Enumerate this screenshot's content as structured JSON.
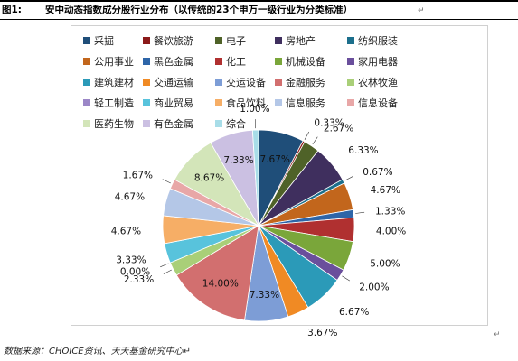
{
  "figure": {
    "label": "图1:",
    "title": "安中动态指数成分股行业分布（以传统的23个申万一级行业为分类标准）",
    "para_mark": "↵",
    "end_mark": "↵",
    "source": "数据来源：CHOICE资讯、天天基金研究中心↵"
  },
  "chart_data": {
    "type": "pie",
    "title": "",
    "legend_position": "top",
    "start": "12 o'clock",
    "direction": "clockwise",
    "unit": "%",
    "slices": [
      {
        "label": "采掘",
        "value": 7.67,
        "display": "7.67%",
        "color": "#1f4e79"
      },
      {
        "label": "餐饮旅游",
        "value": 0.33,
        "display": "0.33%",
        "color": "#8b1a1a"
      },
      {
        "label": "电子",
        "value": 2.67,
        "display": "2.67%",
        "color": "#4f6228"
      },
      {
        "label": "房地产",
        "value": 6.33,
        "display": "6.33%",
        "color": "#3f2f5e"
      },
      {
        "label": "纺织服装",
        "value": 0.67,
        "display": "0.67%",
        "color": "#1c6f8c"
      },
      {
        "label": "公用事业",
        "value": 4.67,
        "display": "4.67%",
        "color": "#c2661c"
      },
      {
        "label": "黑色金属",
        "value": 1.33,
        "display": "1.33%",
        "color": "#2d65a8"
      },
      {
        "label": "化工",
        "value": 4.0,
        "display": "4.00%",
        "color": "#b03030"
      },
      {
        "label": "机械设备",
        "value": 5.0,
        "display": "5.00%",
        "color": "#7aa63a"
      },
      {
        "label": "家用电器",
        "value": 2.0,
        "display": "2.00%",
        "color": "#6a4f9c"
      },
      {
        "label": "建筑建材",
        "value": 6.67,
        "display": "6.67%",
        "color": "#2b9ab8"
      },
      {
        "label": "交通运输",
        "value": 3.67,
        "display": "3.67%",
        "color": "#f08a24"
      },
      {
        "label": "交运设备",
        "value": 7.33,
        "display": "7.33%",
        "color": "#7d9dd6"
      },
      {
        "label": "金融服务",
        "value": 14.0,
        "display": "14.00%",
        "color": "#d26f6f"
      },
      {
        "label": "农林牧渔",
        "value": 2.33,
        "display": "2.33%",
        "color": "#a9cf78"
      },
      {
        "label": "轻工制造",
        "value": 0.0,
        "display": "0.00%",
        "color": "#9b87c7"
      },
      {
        "label": "商业贸易",
        "value": 3.33,
        "display": "3.33%",
        "color": "#58c3dc"
      },
      {
        "label": "食品饮料",
        "value": 4.67,
        "display": "4.67%",
        "color": "#f6ae66"
      },
      {
        "label": "信息服务",
        "value": 4.67,
        "display": "4.67%",
        "color": "#b4c7e7"
      },
      {
        "label": "信息设备",
        "value": 1.67,
        "display": "1.67%",
        "color": "#e8a7a7"
      },
      {
        "label": "医药生物",
        "value": 8.67,
        "display": "8.67%",
        "color": "#d3e5b9"
      },
      {
        "label": "有色金属",
        "value": 7.33,
        "display": "7.33%",
        "color": "#cbc0e2"
      },
      {
        "label": "综合",
        "value": 1.0,
        "display": "1.00%",
        "color": "#a8dde8"
      }
    ]
  }
}
